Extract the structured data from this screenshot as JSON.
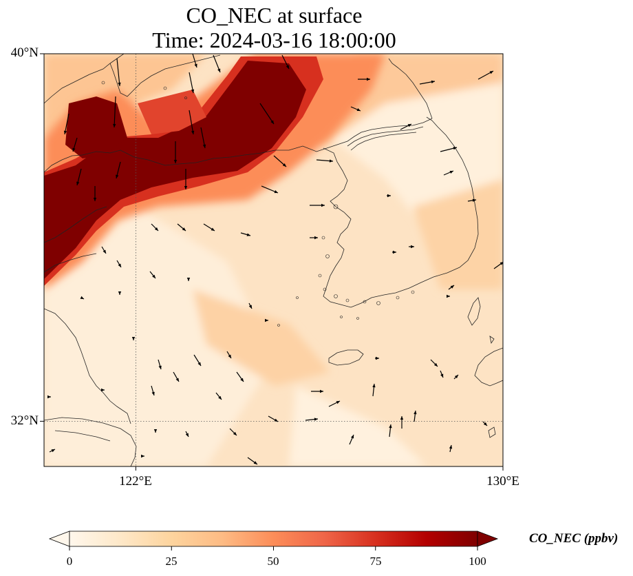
{
  "title": {
    "line1": "CO_NEC at surface",
    "line2": "Time: 2024-03-16 18:00:00"
  },
  "map": {
    "variable": "CO_NEC",
    "level": "surface",
    "extent": {
      "lon": [
        119.5,
        130.0
      ],
      "lat": [
        31.0,
        40.0
      ]
    },
    "gridlines": {
      "lon": [
        122,
        130
      ],
      "lat": [
        32,
        40
      ]
    },
    "lat_labels": [
      "40°N",
      "32°N"
    ],
    "lon_labels": [
      "122°E",
      "130°E"
    ]
  },
  "colorbar": {
    "label": "CO_NEC (ppbv)",
    "ticks": [
      "0",
      "25",
      "50",
      "75",
      "100"
    ],
    "tick_values": [
      0,
      25,
      50,
      75,
      100
    ],
    "range": [
      0,
      100
    ],
    "extend": "both",
    "colormap": "OrRd",
    "colors": [
      "#fff7ec",
      "#fee8c8",
      "#fdd49e",
      "#fdbb84",
      "#fc8d59",
      "#ef6548",
      "#d7301f",
      "#b30000",
      "#7f0000"
    ]
  }
}
